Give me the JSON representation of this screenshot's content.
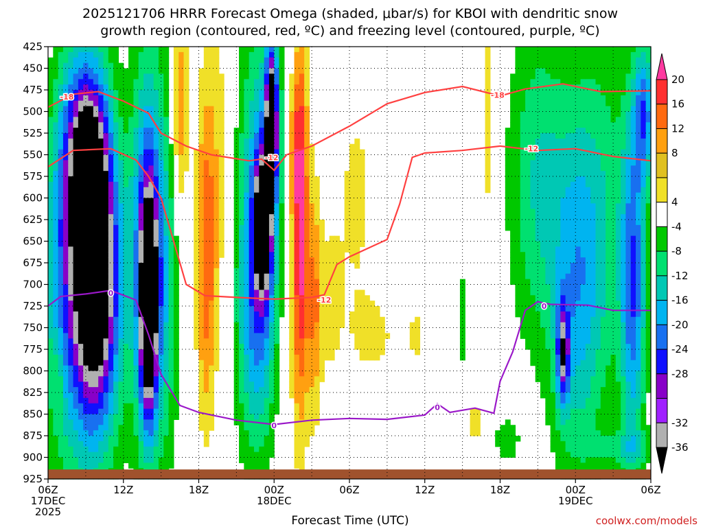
{
  "chart_data": {
    "type": "heatmap",
    "title_line1": "2025121706 HRRR Forecast Omega (shaded, μbar/s) for KBOI with dendritic snow",
    "title_line2": "growth region (contoured, red, ºC) and freezing level (contoured, purple, ºC)",
    "xlabel": "Forecast Time (UTC)",
    "ylabel": "",
    "credit": "coolwx.com/models",
    "x_range_hours": [
      0,
      48
    ],
    "y_range_hpa": [
      925,
      425
    ],
    "x_ticks": [
      {
        "hour": 0,
        "l1": "06Z",
        "l2": "17DEC",
        "l3": "2025"
      },
      {
        "hour": 6,
        "l1": "12Z",
        "l2": "",
        "l3": ""
      },
      {
        "hour": 12,
        "l1": "18Z",
        "l2": "",
        "l3": ""
      },
      {
        "hour": 18,
        "l1": "00Z",
        "l2": "18DEC",
        "l3": ""
      },
      {
        "hour": 24,
        "l1": "06Z",
        "l2": "",
        "l3": ""
      },
      {
        "hour": 30,
        "l1": "12Z",
        "l2": "",
        "l3": ""
      },
      {
        "hour": 36,
        "l1": "18Z",
        "l2": "",
        "l3": ""
      },
      {
        "hour": 42,
        "l1": "00Z",
        "l2": "19DEC",
        "l3": ""
      },
      {
        "hour": 48,
        "l1": "06Z",
        "l2": "",
        "l3": ""
      }
    ],
    "y_ticks": [
      425,
      450,
      475,
      500,
      525,
      550,
      575,
      600,
      625,
      650,
      675,
      700,
      725,
      750,
      775,
      800,
      825,
      850,
      875,
      900,
      925
    ],
    "colorbar": {
      "labels": [
        "20",
        "16",
        "12",
        "8",
        "4",
        "-4",
        "-8",
        "-12",
        "-16",
        "-20",
        "-24",
        "-28",
        "-32",
        "-36"
      ],
      "colors": [
        "#ff3aa0",
        "#ff3030",
        "#ff6a10",
        "#ffa010",
        "#e0c020",
        "#f0e028",
        "#ffffff",
        "#00c800",
        "#00e070",
        "#00c8b4",
        "#00b4f0",
        "#1870f0",
        "#1010ff",
        "#8800c8",
        "#a020ff",
        "#b0b0b0",
        "#000000"
      ]
    },
    "omega_features": [
      {
        "h": 2.5,
        "p": 710,
        "dh": 2.8,
        "dp": 205,
        "v": -24
      },
      {
        "h": 4.0,
        "p": 690,
        "dh": 1.7,
        "dp": 165,
        "v": -32
      },
      {
        "h": 3.2,
        "p": 540,
        "dh": 1.6,
        "dp": 110,
        "v": -24
      },
      {
        "h": 1.6,
        "p": 560,
        "dh": 1.4,
        "dp": 160,
        "v": -8
      },
      {
        "h": 8.0,
        "p": 650,
        "dh": 1.4,
        "dp": 225,
        "v": -24
      },
      {
        "h": 8.0,
        "p": 730,
        "dh": 0.7,
        "dp": 130,
        "v": -36
      },
      {
        "h": 9.5,
        "p": 720,
        "dh": 1.0,
        "dp": 200,
        "v": -8
      },
      {
        "h": 0.8,
        "p": 810,
        "dh": 0.4,
        "dp": 40,
        "v": 5
      },
      {
        "h": 10.5,
        "p": 500,
        "dh": 0.6,
        "dp": 120,
        "v": 12
      },
      {
        "h": 12.6,
        "p": 680,
        "dh": 0.8,
        "dp": 190,
        "v": 13
      },
      {
        "h": 13.6,
        "p": 560,
        "dh": 1.4,
        "dp": 200,
        "v": 6
      },
      {
        "h": 17.0,
        "p": 620,
        "dh": 2.0,
        "dp": 220,
        "v": -20
      },
      {
        "h": 16.5,
        "p": 760,
        "dh": 1.5,
        "dp": 140,
        "v": -10
      },
      {
        "h": 17.1,
        "p": 630,
        "dh": 0.7,
        "dp": 80,
        "v": -30
      },
      {
        "h": 17.8,
        "p": 510,
        "dh": 0.5,
        "dp": 90,
        "v": -36
      },
      {
        "h": 19.5,
        "p": 540,
        "dh": 0.5,
        "dp": 80,
        "v": 8
      },
      {
        "h": 19.0,
        "p": 720,
        "dh": 1.3,
        "dp": 190,
        "v": 6
      },
      {
        "h": 20.1,
        "p": 620,
        "dh": 0.6,
        "dp": 220,
        "v": 22
      },
      {
        "h": 21.2,
        "p": 720,
        "dh": 0.6,
        "dp": 140,
        "v": 12
      },
      {
        "h": 22.5,
        "p": 720,
        "dh": 0.9,
        "dp": 90,
        "v": 6
      },
      {
        "h": 24.5,
        "p": 600,
        "dh": 1.6,
        "dp": 150,
        "v": 5
      },
      {
        "h": 26.0,
        "p": 760,
        "dh": 2.0,
        "dp": 50,
        "v": 5
      },
      {
        "h": 29.3,
        "p": 760,
        "dh": 0.6,
        "dp": 45,
        "v": 5
      },
      {
        "h": 33.0,
        "p": 740,
        "dh": 0.4,
        "dp": 100,
        "v": -5
      },
      {
        "h": 34.0,
        "p": 860,
        "dh": 0.7,
        "dp": 30,
        "v": 6
      },
      {
        "h": 35.0,
        "p": 500,
        "dh": 0.5,
        "dp": 130,
        "v": 8
      },
      {
        "h": 39.0,
        "p": 580,
        "dh": 2.4,
        "dp": 190,
        "v": -12
      },
      {
        "h": 42.0,
        "p": 720,
        "dh": 2.0,
        "dp": 200,
        "v": -14
      },
      {
        "h": 44.0,
        "p": 620,
        "dh": 2.5,
        "dp": 230,
        "v": -10
      },
      {
        "h": 46.6,
        "p": 700,
        "dh": 1.0,
        "dp": 200,
        "v": -22
      },
      {
        "h": 41.0,
        "p": 780,
        "dh": 0.5,
        "dp": 60,
        "v": -24
      },
      {
        "h": 47.5,
        "p": 500,
        "dh": 0.8,
        "dp": 80,
        "v": -20
      },
      {
        "h": 46.0,
        "p": 890,
        "dh": 2.5,
        "dp": 20,
        "v": -8
      },
      {
        "h": 36.5,
        "p": 880,
        "dh": 1.2,
        "dp": 30,
        "v": -6
      }
    ],
    "contours": [
      {
        "name": "-18",
        "color": "#ff4040",
        "label_at": [
          [
            1.5,
            483
          ],
          [
            35.8,
            481
          ]
        ],
        "points": [
          [
            0,
            495
          ],
          [
            2,
            480
          ],
          [
            4,
            477
          ],
          [
            6,
            488
          ],
          [
            8,
            502
          ],
          [
            9,
            525
          ],
          [
            11,
            540
          ],
          [
            13,
            550
          ],
          [
            16,
            557
          ],
          [
            17,
            555
          ],
          [
            18,
            568
          ],
          [
            19,
            550
          ],
          [
            21,
            540
          ],
          [
            24,
            517
          ],
          [
            27,
            491
          ],
          [
            30,
            478
          ],
          [
            33,
            471
          ],
          [
            36,
            482
          ],
          [
            38,
            474
          ],
          [
            41,
            468
          ],
          [
            44,
            477
          ],
          [
            48,
            476
          ]
        ]
      },
      {
        "name": "-12",
        "color": "#ff4040",
        "label_at": [
          [
            17.8,
            553
          ],
          [
            22.0,
            718
          ],
          [
            38.5,
            543
          ]
        ],
        "points": [
          [
            0,
            564
          ],
          [
            2,
            545
          ],
          [
            5,
            543
          ],
          [
            7,
            556
          ],
          [
            8,
            575
          ],
          [
            9,
            600
          ],
          [
            10,
            650
          ],
          [
            11,
            700
          ],
          [
            12.5,
            713
          ],
          [
            15,
            715
          ],
          [
            18,
            717
          ],
          [
            21,
            715
          ],
          [
            22,
            712
          ],
          [
            23,
            677
          ],
          [
            24,
            668
          ],
          [
            27,
            648
          ],
          [
            28,
            607
          ],
          [
            29,
            553
          ],
          [
            30,
            548
          ],
          [
            33,
            545
          ],
          [
            36,
            540
          ],
          [
            39,
            545
          ],
          [
            42,
            543
          ],
          [
            45,
            552
          ],
          [
            48,
            557
          ]
        ]
      },
      {
        "name": "0",
        "color": "#9a18c8",
        "label_at": [
          [
            5.0,
            710
          ],
          [
            18.0,
            863
          ],
          [
            31.0,
            842
          ],
          [
            39.5,
            725
          ]
        ],
        "points": [
          [
            0,
            725
          ],
          [
            1,
            714
          ],
          [
            3,
            711
          ],
          [
            5,
            707
          ],
          [
            7,
            718
          ],
          [
            8,
            758
          ],
          [
            9,
            804
          ],
          [
            10.5,
            840
          ],
          [
            12,
            848
          ],
          [
            15,
            857
          ],
          [
            18,
            862
          ],
          [
            21,
            857
          ],
          [
            24,
            855
          ],
          [
            27,
            856
          ],
          [
            30,
            851
          ],
          [
            31,
            838
          ],
          [
            32,
            848
          ],
          [
            34,
            843
          ],
          [
            35.5,
            849
          ],
          [
            36,
            812
          ],
          [
            37,
            778
          ],
          [
            38,
            730
          ],
          [
            39,
            720
          ],
          [
            40,
            723
          ],
          [
            43,
            724
          ],
          [
            45,
            730
          ],
          [
            48,
            730
          ]
        ]
      }
    ]
  }
}
